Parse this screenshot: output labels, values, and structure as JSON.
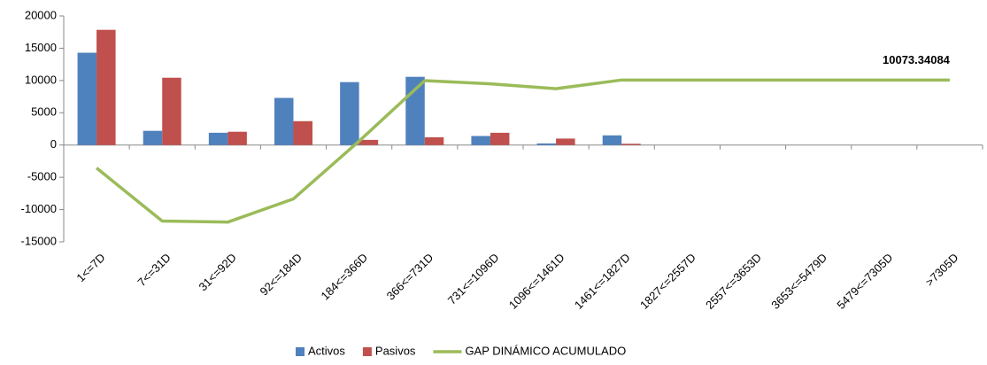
{
  "chart_data": {
    "type": "bar_line",
    "categories": [
      "1<=7D",
      "7<=31D",
      "31<=92D",
      "92<=184D",
      "184<=366D",
      "366<=731D",
      "731<=1096D",
      "1096<=1461D",
      "1461<=1827D",
      "1827<=2557D",
      "2557<=3653D",
      "3653<=5479D",
      "5479<=7305D",
      ">7305D"
    ],
    "series": [
      {
        "name": "Activos",
        "kind": "bar",
        "color": "#4f81bd",
        "values": [
          14300,
          2200,
          1900,
          7300,
          9750,
          10570,
          1400,
          250,
          1500,
          0,
          0,
          0,
          0,
          0
        ]
      },
      {
        "name": "Pasivos",
        "kind": "bar",
        "color": "#c0504d",
        "values": [
          17850,
          10430,
          2060,
          3700,
          800,
          1200,
          1900,
          1000,
          200,
          0,
          0,
          0,
          0,
          0
        ]
      },
      {
        "name": "GAP DINÁMICO ACUMULADO",
        "kind": "line",
        "color": "#9bbb59",
        "values": [
          -3550,
          -11780,
          -11940,
          -8340,
          610,
          9980,
          9480,
          8730,
          10073.34084,
          10073.34084,
          10073.34084,
          10073.34084,
          10073.34084,
          10073.34084
        ],
        "labeled_points": [
          13
        ]
      }
    ],
    "ylim": [
      -15000,
      20000
    ],
    "yticks": [
      -15000,
      -10000,
      -5000,
      0,
      5000,
      10000,
      15000,
      20000
    ],
    "legend": "bottom"
  }
}
